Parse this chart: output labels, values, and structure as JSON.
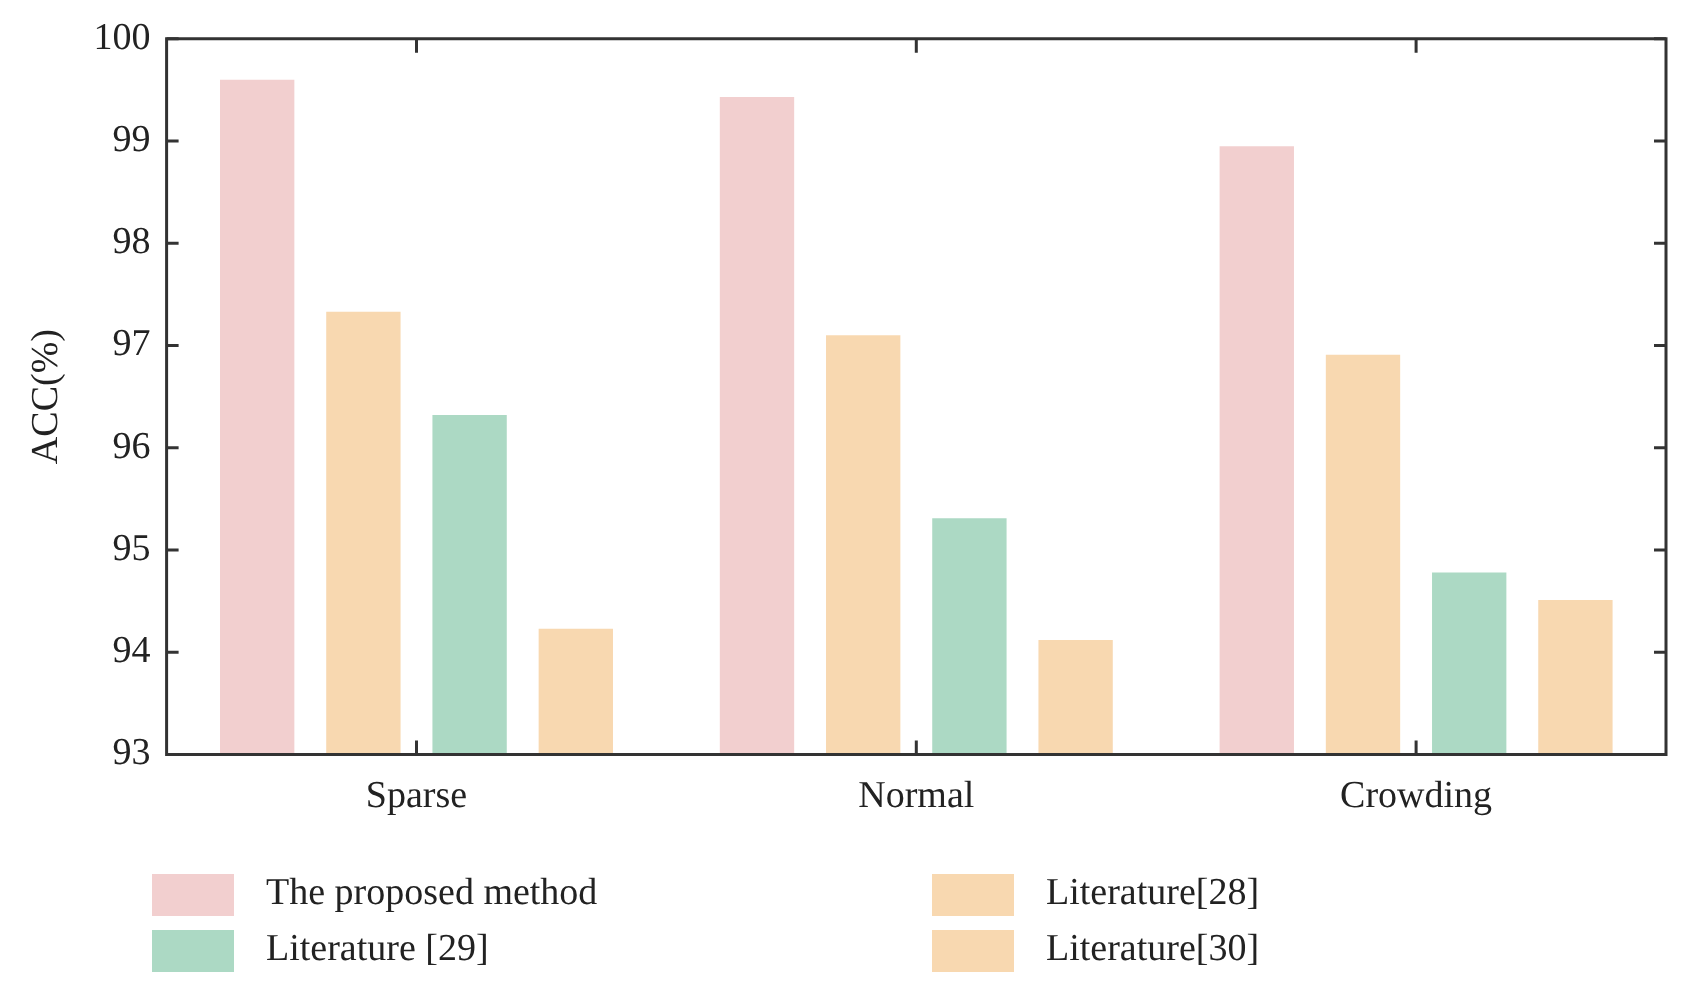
{
  "chart_data": {
    "type": "bar",
    "ylabel": "ACC(%)",
    "categories": [
      "Sparse",
      "Normal",
      "Crowding"
    ],
    "series": [
      {
        "name": "The proposed method",
        "color": "#f2cfcf",
        "values": [
          99.6,
          99.43,
          98.95
        ]
      },
      {
        "name": "Literature[28]",
        "color": "#f8d8b0",
        "values": [
          97.33,
          97.1,
          96.91
        ]
      },
      {
        "name": "Literature [29]",
        "color": "#acd9c4",
        "values": [
          96.32,
          95.31,
          94.78
        ]
      },
      {
        "name": "Literature[30]",
        "color": "#f8d8b0",
        "values": [
          94.23,
          94.12,
          94.51
        ]
      }
    ],
    "ylim": [
      93,
      100
    ],
    "yticks": [
      93,
      94,
      95,
      96,
      97,
      98,
      99,
      100
    ],
    "grid": false,
    "legend": "bottom"
  }
}
